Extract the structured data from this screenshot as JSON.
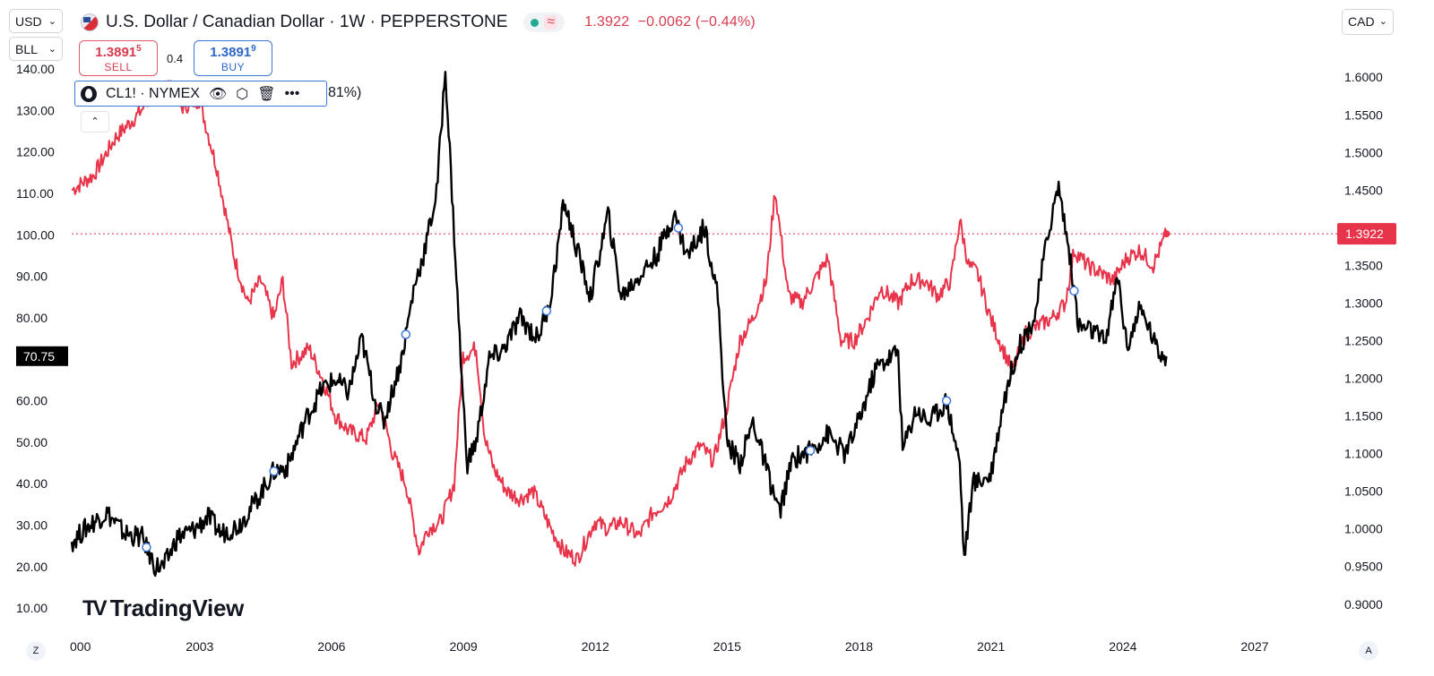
{
  "header": {
    "title": "U.S. Dollar / Canadian Dollar · 1W · PEPPERSTONE",
    "status_icon": "≈",
    "last_price": "1.3922",
    "change": "−0.0062",
    "change_pct": "(−0.44%)"
  },
  "left_scale": {
    "currency_select": "USD",
    "unit_select": "BLL",
    "current_label": "70.75",
    "ticks": [
      "140.00",
      "130.00",
      "120.00",
      "110.00",
      "100.00",
      "90.00",
      "80.00",
      "60.00",
      "50.00",
      "40.00",
      "30.00",
      "20.00",
      "10.00"
    ]
  },
  "right_scale": {
    "currency_select": "CAD",
    "current_label": "1.3922",
    "ticks": [
      "1.6000",
      "1.5500",
      "1.5000",
      "1.4500",
      "1.3500",
      "1.3000",
      "1.2500",
      "1.2000",
      "1.1500",
      "1.1000",
      "1.0500",
      "1.0000",
      "0.9500",
      "0.9000"
    ]
  },
  "trade": {
    "sell_price": "1.3891",
    "sell_sup": "5",
    "sell_label": "SELL",
    "buy_price": "1.3891",
    "buy_sup": "9",
    "buy_label": "BUY",
    "spread": "0.4"
  },
  "legend": {
    "symbol": "CL1! · NYMEX",
    "tail": "81%)",
    "icons": [
      "oil-drop-icon",
      "eye-icon",
      "settings-icon",
      "trash-icon",
      "more-icon"
    ]
  },
  "branding": "TradingView",
  "x_ticks": [
    "000",
    "2003",
    "2006",
    "2009",
    "2012",
    "2015",
    "2018",
    "2021",
    "2024",
    "2027"
  ],
  "corner_left": "Z",
  "corner_right": "A",
  "colors": {
    "usdcad": "#e8344a",
    "crude": "#000000",
    "accent_blue": "#3d78d8"
  },
  "chart_data": {
    "type": "line",
    "title": "U.S. Dollar / Canadian Dollar · 1W · PEPPERSTONE",
    "xlim": [
      2000.0,
      2028.5
    ],
    "grid": false,
    "series": [
      {
        "name": "U.S. Dollar / Canadian Dollar",
        "axis": "right",
        "ylim": [
          0.87,
          1.655
        ],
        "color": "#e8344a",
        "x": [
          2000.0,
          2000.5,
          2001.0,
          2001.5,
          2001.9,
          2002.2,
          2002.5,
          2002.9,
          2003.3,
          2003.7,
          2004.0,
          2004.3,
          2004.6,
          2004.8,
          2005.0,
          2005.4,
          2005.7,
          2006.0,
          2006.3,
          2006.7,
          2007.0,
          2007.3,
          2007.6,
          2007.9,
          2008.1,
          2008.4,
          2008.7,
          2008.9,
          2009.2,
          2009.4,
          2009.6,
          2009.9,
          2010.2,
          2010.5,
          2010.9,
          2011.2,
          2011.5,
          2011.9,
          2012.2,
          2012.5,
          2012.9,
          2013.2,
          2013.6,
          2014.0,
          2014.3,
          2014.6,
          2014.9,
          2015.2,
          2015.5,
          2015.8,
          2016.0,
          2016.3,
          2016.6,
          2016.9,
          2017.2,
          2017.5,
          2017.8,
          2018.1,
          2018.4,
          2018.8,
          2019.1,
          2019.4,
          2019.7,
          2020.0,
          2020.2,
          2020.4,
          2020.6,
          2020.9,
          2021.1,
          2021.4,
          2021.7,
          2022.0,
          2022.3,
          2022.6,
          2022.8,
          2023.1,
          2023.4,
          2023.7,
          2024.0,
          2024.3,
          2024.6,
          2024.9
        ],
        "values": [
          1.45,
          1.47,
          1.52,
          1.55,
          1.58,
          1.59,
          1.56,
          1.57,
          1.48,
          1.36,
          1.3,
          1.33,
          1.28,
          1.33,
          1.22,
          1.24,
          1.2,
          1.15,
          1.13,
          1.12,
          1.17,
          1.1,
          1.06,
          0.97,
          1.0,
          1.01,
          1.06,
          1.23,
          1.24,
          1.12,
          1.08,
          1.05,
          1.04,
          1.05,
          1.0,
          0.97,
          0.96,
          1.01,
          1.0,
          1.01,
          0.99,
          1.02,
          1.04,
          1.09,
          1.11,
          1.09,
          1.16,
          1.25,
          1.28,
          1.33,
          1.45,
          1.31,
          1.3,
          1.33,
          1.36,
          1.25,
          1.25,
          1.28,
          1.32,
          1.3,
          1.33,
          1.33,
          1.31,
          1.33,
          1.41,
          1.35,
          1.34,
          1.28,
          1.25,
          1.21,
          1.26,
          1.27,
          1.28,
          1.3,
          1.37,
          1.35,
          1.34,
          1.33,
          1.36,
          1.37,
          1.35,
          1.392
        ]
      },
      {
        "name": "CL1! · NYMEX",
        "axis": "left",
        "ylim": [
          5.5,
          148.0
        ],
        "color": "#000000",
        "x": [
          2000.0,
          2000.4,
          2000.8,
          2001.2,
          2001.6,
          2001.9,
          2002.1,
          2002.4,
          2002.8,
          2003.1,
          2003.4,
          2003.8,
          2004.2,
          2004.6,
          2004.9,
          2005.3,
          2005.7,
          2006.0,
          2006.3,
          2006.6,
          2006.9,
          2007.1,
          2007.5,
          2007.8,
          2008.0,
          2008.3,
          2008.5,
          2008.7,
          2008.9,
          2009.0,
          2009.2,
          2009.5,
          2009.8,
          2010.2,
          2010.6,
          2010.9,
          2011.2,
          2011.4,
          2011.8,
          2012.2,
          2012.5,
          2012.9,
          2013.3,
          2013.7,
          2014.0,
          2014.4,
          2014.7,
          2014.9,
          2015.2,
          2015.5,
          2015.9,
          2016.1,
          2016.4,
          2016.8,
          2017.2,
          2017.6,
          2017.9,
          2018.3,
          2018.8,
          2018.9,
          2019.2,
          2019.5,
          2019.9,
          2020.0,
          2020.2,
          2020.3,
          2020.5,
          2020.9,
          2021.2,
          2021.5,
          2021.9,
          2022.2,
          2022.45,
          2022.7,
          2022.9,
          2023.2,
          2023.5,
          2023.8,
          2024.0,
          2024.3,
          2024.5,
          2024.7,
          2024.9
        ],
        "values": [
          26,
          30,
          33,
          28,
          27,
          20,
          20,
          27,
          29,
          32,
          28,
          30,
          36,
          43,
          44,
          55,
          63,
          65,
          62,
          75,
          60,
          55,
          70,
          88,
          95,
          110,
          140,
          100,
          60,
          45,
          50,
          70,
          72,
          80,
          75,
          85,
          108,
          100,
          85,
          105,
          85,
          90,
          95,
          105,
          95,
          102,
          85,
          50,
          45,
          55,
          40,
          33,
          46,
          48,
          52,
          47,
          55,
          68,
          72,
          48,
          58,
          55,
          60,
          55,
          45,
          22,
          40,
          42,
          60,
          72,
          80,
          100,
          112,
          95,
          78,
          77,
          74,
          90,
          73,
          82,
          78,
          72,
          70.75
        ]
      }
    ]
  }
}
